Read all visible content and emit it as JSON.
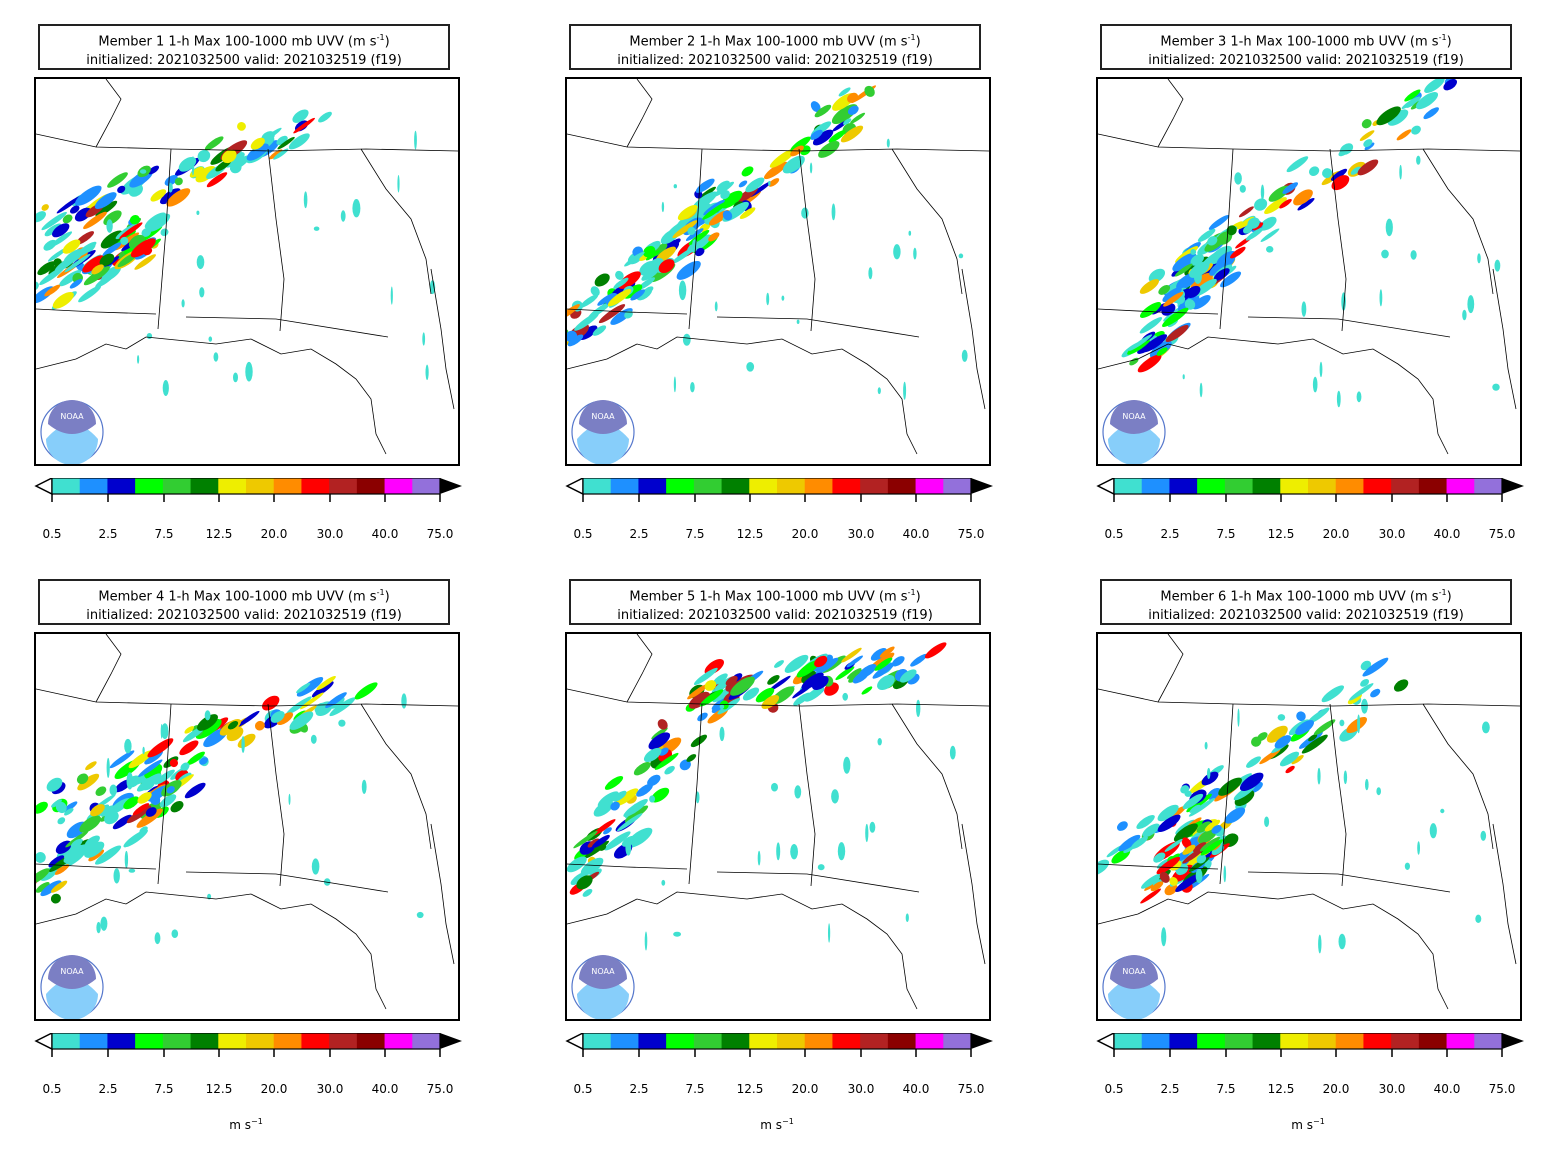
{
  "figure": {
    "panels": [
      {
        "member": "Member 1",
        "product": "1-h Max 100-1000 mb UVV (m s",
        "exp": "-1",
        "close": ")",
        "line2": "initialized: 2021032500 valid: 2021032519 (f19)",
        "units_shown": false
      },
      {
        "member": "Member 2",
        "product": "1-h Max 100-1000 mb UVV (m s",
        "exp": "-1",
        "close": ")",
        "line2": "initialized: 2021032500 valid: 2021032519 (f19)",
        "units_shown": false
      },
      {
        "member": "Member 3",
        "product": "1-h Max 100-1000 mb UVV (m s",
        "exp": "-1",
        "close": ")",
        "line2": "initialized: 2021032500 valid: 2021032519 (f19)",
        "units_shown": false
      },
      {
        "member": "Member 4",
        "product": "1-h Max 100-1000 mb UVV (m s",
        "exp": "-1",
        "close": ")",
        "line2": "initialized: 2021032500 valid: 2021032519 (f19)",
        "units_shown": true
      },
      {
        "member": "Member 5",
        "product": "1-h Max 100-1000 mb UVV (m s",
        "exp": "-1",
        "close": ")",
        "line2": "initialized: 2021032500 valid: 2021032519 (f19)",
        "units_shown": true
      },
      {
        "member": "Member 6",
        "product": "1-h Max 100-1000 mb UVV (m s",
        "exp": "-1",
        "close": ")",
        "line2": "initialized: 2021032500 valid: 2021032519 (f19)",
        "units_shown": true
      }
    ],
    "colorbar": {
      "colors": [
        "#40e0d0",
        "#1e90ff",
        "#0000cd",
        "#00ff00",
        "#32cd32",
        "#008000",
        "#eeee00",
        "#eec900",
        "#ff8c00",
        "#ff0000",
        "#b22222",
        "#8b0000",
        "#ff00ff",
        "#9370db"
      ],
      "tick_labels": [
        "0.5",
        "2.5",
        "7.5",
        "12.5",
        "20.0",
        "30.0",
        "40.0",
        "75.0"
      ],
      "units": "m s",
      "units_exp": "−1",
      "extend": "both"
    },
    "logo_text": "NOAA"
  }
}
